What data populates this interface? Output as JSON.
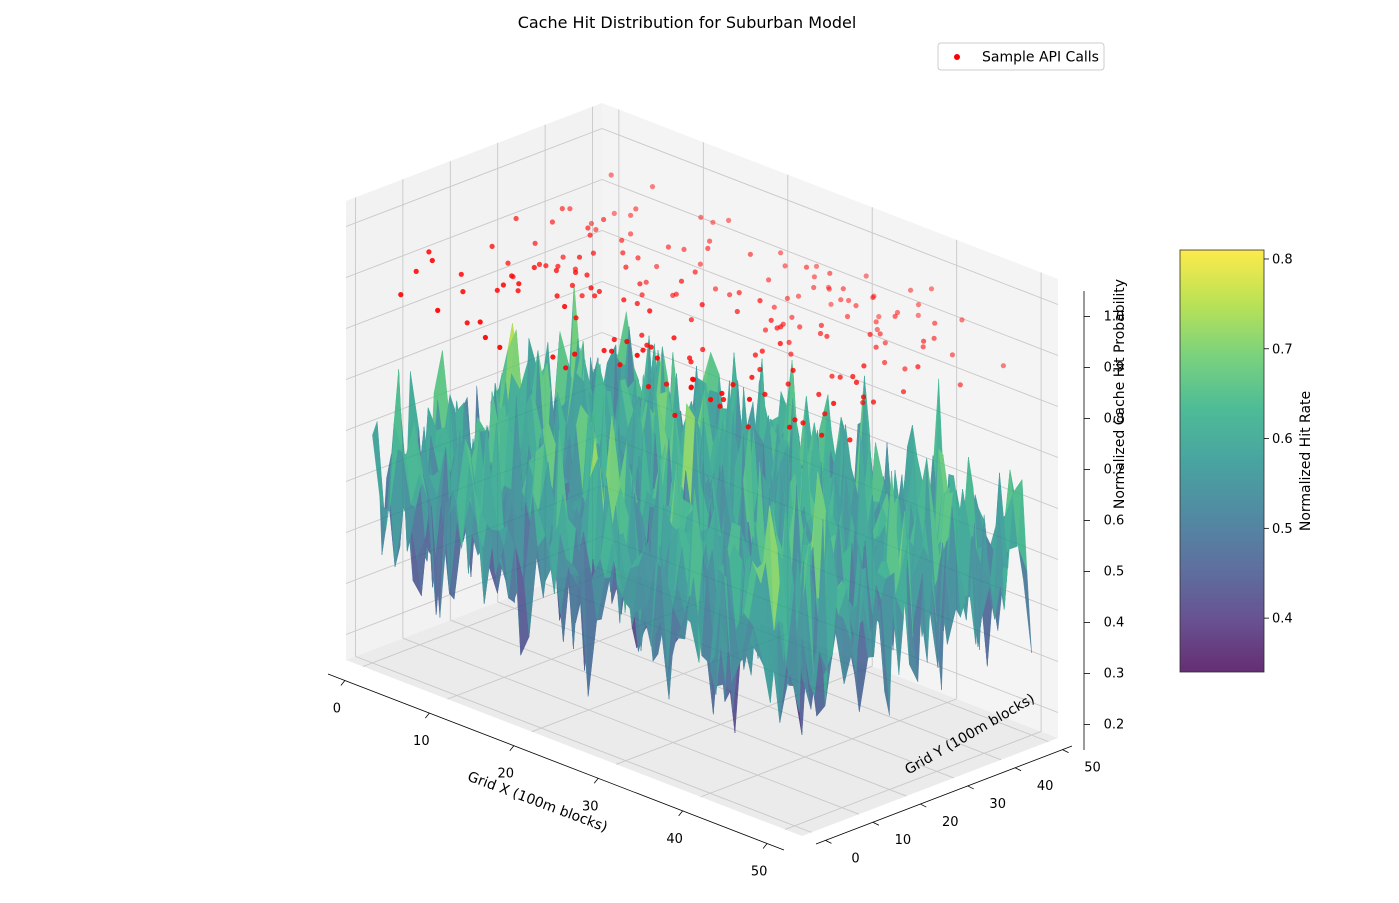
{
  "chart_data": {
    "type": "surface3d",
    "title": "Cache Hit Distribution for Suburban Model",
    "xlabel": "Grid X (100m blocks)",
    "ylabel": "Grid Y (100m blocks)",
    "zlabel": "Normalized Cache Hit Probability",
    "xlim": [
      -2,
      52
    ],
    "ylim": [
      -2,
      52
    ],
    "zlim": [
      0.15,
      1.05
    ],
    "x_ticks": [
      0,
      10,
      20,
      30,
      40,
      50
    ],
    "y_ticks": [
      0,
      10,
      20,
      30,
      40,
      50
    ],
    "z_ticks": [
      0.2,
      0.3,
      0.4,
      0.5,
      0.6,
      0.7,
      0.8,
      0.9,
      1.0
    ],
    "x_tick_labels": [
      "0",
      "10",
      "20",
      "30",
      "40",
      "50"
    ],
    "y_tick_labels": [
      "0",
      "10",
      "20",
      "30",
      "40",
      "50"
    ],
    "z_tick_labels": [
      "0.2",
      "0.3",
      "0.4",
      "0.5",
      "0.6",
      "0.7",
      "0.8",
      "0.9",
      "1.0"
    ],
    "surface": {
      "grid_size": 50,
      "x_range": [
        0,
        50
      ],
      "y_range": [
        0,
        50
      ],
      "value_range": [
        0.34,
        0.81
      ],
      "mean": 0.6,
      "colormap": "viridis"
    },
    "series": [
      {
        "name": "Sample API Calls",
        "color": "#ff0000",
        "points": [
          [
            0.8,
            49.6,
            0.86
          ],
          [
            45.3,
            23.0,
            0.94
          ],
          [
            34.2,
            45.6,
            0.86
          ],
          [
            28.6,
            11.1,
            0.84
          ],
          [
            43.3,
            18.3,
            0.85
          ],
          [
            16.1,
            34.7,
            0.85
          ],
          [
            4.4,
            4.8,
            0.95
          ],
          [
            5.3,
            30.8,
            0.87
          ],
          [
            24.8,
            49.5,
            0.91
          ],
          [
            15.1,
            21.0,
            0.9
          ],
          [
            36.7,
            8.7,
            0.87
          ],
          [
            1.0,
            48.6,
            0.94
          ],
          [
            12.9,
            30.5,
            0.9
          ],
          [
            41.6,
            30.9,
            0.95
          ],
          [
            0.6,
            40.6,
            0.9
          ],
          [
            10.4,
            28.1,
            0.92
          ],
          [
            16.2,
            14.1,
            0.88
          ],
          [
            26.5,
            41.3,
            0.85
          ],
          [
            20.1,
            32.3,
            0.93
          ],
          [
            11.0,
            22.6,
            0.88
          ],
          [
            39.1,
            1.7,
            0.91
          ],
          [
            10.8,
            25.0,
            0.85
          ],
          [
            32.3,
            49.3,
            0.86
          ],
          [
            44.1,
            43.8,
            0.88
          ],
          [
            18.5,
            7.6,
            0.94
          ],
          [
            3.1,
            28.8,
            0.89
          ],
          [
            2.3,
            1.9,
            0.88
          ],
          [
            34.7,
            2.0,
            0.85
          ],
          [
            7.4,
            35.6,
            0.94
          ],
          [
            18.4,
            39.6,
            0.86
          ],
          [
            32.8,
            41.8,
            0.89
          ],
          [
            45.5,
            20.3,
            0.93
          ],
          [
            6.6,
            23.5,
            0.89
          ],
          [
            28.3,
            16.5,
            0.87
          ],
          [
            1.3,
            28.0,
            0.93
          ],
          [
            37.5,
            41.4,
            0.87
          ],
          [
            13.7,
            44.8,
            0.86
          ],
          [
            25.2,
            8.8,
            0.91
          ],
          [
            12.7,
            49.2,
            0.92
          ],
          [
            24.3,
            34.1,
            0.91
          ],
          [
            13.6,
            41.5,
            0.9
          ],
          [
            38.1,
            12.2,
            0.91
          ],
          [
            10.9,
            19.4,
            0.92
          ],
          [
            14.9,
            48.6,
            0.94
          ],
          [
            38.3,
            5.1,
            0.88
          ],
          [
            40.0,
            35.0,
            0.9
          ],
          [
            11.0,
            24.1,
            0.93
          ],
          [
            26.3,
            46.4,
            0.91
          ],
          [
            22.5,
            43.5,
            0.89
          ],
          [
            44.4,
            39.4,
            0.93
          ],
          [
            10.8,
            8.4,
            0.93
          ],
          [
            35.3,
            42.7,
            0.94
          ],
          [
            48.4,
            37.8,
            0.87
          ],
          [
            30.2,
            34.1,
            0.85
          ],
          [
            21.8,
            12.2,
            0.88
          ],
          [
            25.8,
            4.5,
            0.91
          ],
          [
            9.0,
            29.9,
            0.94
          ],
          [
            29.5,
            5.7,
            0.86
          ],
          [
            39.5,
            39.9,
            0.94
          ],
          [
            39.6,
            3.2,
            0.92
          ],
          [
            16.9,
            34.0,
            0.86
          ],
          [
            21.4,
            48.0,
            0.92
          ],
          [
            24.6,
            14.1,
            0.88
          ],
          [
            22.2,
            40.2,
            0.95
          ],
          [
            48.6,
            28.5,
            0.94
          ],
          [
            35.0,
            19.4,
            0.88
          ],
          [
            18.0,
            38.7,
            0.94
          ],
          [
            14.2,
            31.6,
            0.85
          ],
          [
            38.1,
            8.2,
            0.91
          ],
          [
            17.2,
            15.5,
            0.94
          ],
          [
            13.4,
            21.4,
            0.92
          ],
          [
            44.6,
            24.0,
            0.86
          ],
          [
            6.5,
            42.9,
            0.88
          ],
          [
            3.8,
            22.9,
            0.85
          ],
          [
            12.2,
            34.3,
            0.9
          ],
          [
            43.7,
            1.7,
            0.94
          ],
          [
            29.4,
            34.3,
            0.88
          ],
          [
            27.1,
            28.7,
            0.91
          ],
          [
            31.2,
            29.8,
            0.9
          ],
          [
            48.0,
            47.6,
            0.87
          ],
          [
            6.1,
            44.7,
            0.92
          ],
          [
            41.8,
            14.3,
            0.94
          ],
          [
            26.8,
            49.0,
            0.85
          ],
          [
            8.9,
            10.5,
            0.9
          ],
          [
            14.7,
            20.7,
            0.89
          ],
          [
            7.0,
            33.0,
            0.93
          ],
          [
            11.5,
            10.4,
            0.93
          ],
          [
            47.5,
            21.1,
            0.89
          ],
          [
            13.1,
            0.5,
            0.87
          ],
          [
            12.5,
            35.5,
            0.85
          ],
          [
            22.5,
            0.7,
            0.87
          ],
          [
            27.9,
            43.4,
            0.91
          ],
          [
            1.8,
            43.0,
            0.87
          ],
          [
            22.5,
            2.6,
            0.89
          ],
          [
            35.3,
            43.4,
            0.89
          ],
          [
            12.5,
            16.7,
            0.89
          ],
          [
            36.2,
            31.4,
            0.91
          ],
          [
            13.9,
            18.1,
            0.94
          ],
          [
            40.7,
            10.3,
            0.9
          ],
          [
            26.9,
            35.0,
            0.85
          ],
          [
            29.9,
            28.5,
            0.95
          ],
          [
            41.6,
            5.2,
            0.86
          ],
          [
            32.4,
            44.3,
            0.9
          ],
          [
            43.1,
            17.4,
            0.89
          ],
          [
            30.8,
            49.3,
            0.93
          ],
          [
            5.5,
            9.3,
            0.88
          ],
          [
            37.5,
            48.4,
            0.92
          ],
          [
            9.4,
            14.0,
            0.89
          ],
          [
            48.8,
            13.8,
            0.85
          ],
          [
            39.5,
            26.6,
            0.87
          ],
          [
            6.3,
            31.6,
            0.85
          ],
          [
            11.3,
            32.7,
            0.91
          ],
          [
            20.4,
            20.5,
            0.85
          ],
          [
            1.3,
            9.6,
            0.93
          ],
          [
            46.9,
            28.5,
            0.88
          ],
          [
            27.1,
            21.3,
            0.95
          ],
          [
            18.4,
            23.1,
            0.89
          ],
          [
            21.5,
            26.9,
            0.94
          ],
          [
            29.8,
            43.4,
            0.95
          ],
          [
            34.2,
            33.8,
            0.91
          ],
          [
            7.5,
            16.0,
            0.9
          ],
          [
            2.4,
            33.7,
            0.91
          ],
          [
            24.9,
            43.2,
            0.87
          ],
          [
            8.2,
            5.4,
            0.85
          ],
          [
            36.7,
            45.4,
            0.91
          ],
          [
            31.4,
            11.3,
            0.85
          ],
          [
            42.9,
            42.2,
            0.94
          ],
          [
            13.1,
            39.1,
            0.91
          ],
          [
            34.6,
            32.9,
            0.9
          ],
          [
            30.4,
            46.3,
            0.89
          ],
          [
            24.2,
            15.4,
            0.94
          ],
          [
            7.2,
            26.3,
            0.88
          ],
          [
            21.7,
            36.7,
            0.88
          ],
          [
            22.1,
            47.7,
            0.9
          ],
          [
            33.1,
            23.3,
            0.89
          ],
          [
            2.5,
            35.6,
            0.93
          ],
          [
            3.4,
            19.2,
            0.92
          ],
          [
            25.2,
            45.0,
            0.87
          ],
          [
            6.4,
            25.2,
            0.88
          ],
          [
            27.4,
            18.4,
            0.85
          ],
          [
            37.4,
            40.5,
            0.89
          ],
          [
            32.1,
            31.1,
            0.85
          ],
          [
            45.6,
            7.9,
            0.89
          ],
          [
            48.0,
            2.5,
            0.91
          ],
          [
            32.8,
            27.7,
            0.92
          ],
          [
            44.2,
            12.1,
            0.86
          ],
          [
            10.1,
            34.6,
            0.92
          ],
          [
            43.5,
            38.7,
            0.91
          ],
          [
            15.4,
            43.7,
            0.92
          ],
          [
            36.4,
            48.7,
            0.94
          ],
          [
            47.2,
            10.7,
            0.86
          ],
          [
            30.0,
            36.7,
            0.87
          ],
          [
            1.2,
            7.1,
            0.9
          ],
          [
            34.1,
            6.8,
            0.9
          ],
          [
            6.0,
            48.4,
            0.95
          ],
          [
            31.9,
            3.3,
            0.94
          ],
          [
            47.4,
            17.7,
            0.94
          ],
          [
            2.2,
            24.7,
            0.86
          ],
          [
            39.7,
            17.0,
            0.89
          ],
          [
            48.5,
            17.2,
            0.92
          ],
          [
            22.9,
            8.1,
            0.88
          ],
          [
            27.5,
            9.8,
            0.91
          ],
          [
            10.7,
            40.9,
            0.85
          ],
          [
            32.8,
            25.7,
            0.94
          ],
          [
            10.7,
            15.1,
            0.94
          ],
          [
            14.7,
            0.7,
            0.86
          ],
          [
            41.7,
            24.4,
            0.89
          ],
          [
            37.6,
            0.3,
            0.93
          ],
          [
            41.9,
            37.7,
            0.86
          ],
          [
            28.2,
            13.4,
            0.92
          ],
          [
            18.6,
            19.9,
            0.91
          ],
          [
            4.3,
            11.1,
            0.9
          ],
          [
            27.5,
            8.1,
            0.91
          ],
          [
            23.3,
            25.8,
            0.88
          ],
          [
            45.8,
            34.7,
            0.95
          ],
          [
            6.9,
            1.5,
            0.88
          ],
          [
            26.4,
            49.2,
            0.88
          ],
          [
            19.3,
            3.7,
            0.86
          ],
          [
            35.0,
            5.4,
            0.91
          ],
          [
            43.2,
            47.4,
            0.93
          ],
          [
            37.7,
            18.9,
            0.95
          ],
          [
            12.0,
            47.9,
            0.93
          ],
          [
            11.2,
            2.8,
            0.88
          ],
          [
            26.2,
            23.0,
            0.85
          ],
          [
            32.5,
            22.9,
            0.88
          ],
          [
            26.8,
            4.5,
            0.89
          ],
          [
            5.2,
            45.2,
            0.9
          ],
          [
            36.8,
            49.6,
            0.89
          ],
          [
            3.0,
            41.8,
            0.87
          ],
          [
            32.0,
            48.8,
            0.9
          ],
          [
            38.2,
            49.9,
            0.95
          ],
          [
            30.6,
            44.3,
            0.9
          ],
          [
            31.4,
            43.4,
            0.93
          ],
          [
            27.5,
            42.6,
            0.95
          ],
          [
            30.3,
            1.9,
            0.94
          ],
          [
            16.3,
            27.4,
            0.9
          ],
          [
            27.5,
            47.4,
            0.89
          ],
          [
            23.9,
            42.2,
            0.85
          ],
          [
            40.5,
            35.9,
            0.87
          ],
          [
            48.5,
            10.9,
            0.93
          ]
        ]
      }
    ],
    "colorbar": {
      "label": "Normalized Hit Rate",
      "range": [
        0.34,
        0.81
      ],
      "ticks": [
        0.4,
        0.5,
        0.6,
        0.7,
        0.8
      ],
      "tick_labels": [
        "0.4",
        "0.5",
        "0.6",
        "0.7",
        "0.8"
      ]
    },
    "legend": {
      "position": "top-right",
      "label": "Sample API Calls"
    },
    "grid": true
  }
}
